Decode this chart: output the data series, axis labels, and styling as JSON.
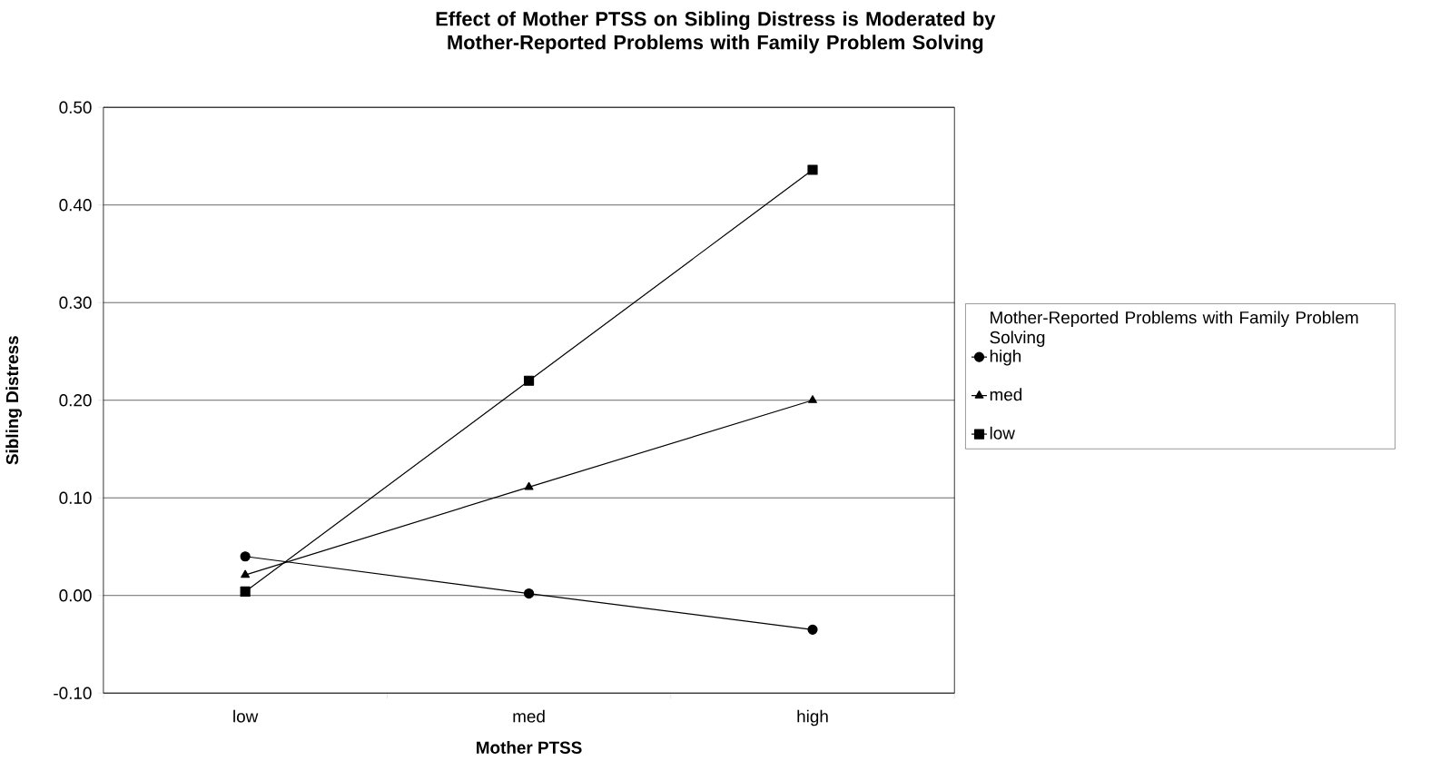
{
  "chart_data": {
    "type": "line",
    "title": "Effect of Mother PTSS on Sibling Distress is Moderated by Mother-Reported Problems with Family Problem Solving",
    "xlabel": "Mother PTSS",
    "ylabel": "Sibling Distress",
    "legend_title": "Mother-Reported Problems with Family Problem Solving",
    "categories": [
      "low",
      "med",
      "high"
    ],
    "series": [
      {
        "name": "high",
        "color": "#000000",
        "marker": "circle",
        "values": [
          0.04,
          0.002,
          -0.035
        ]
      },
      {
        "name": "med",
        "color": "#000000",
        "marker": "triangle",
        "values": [
          0.021,
          0.111,
          0.2
        ]
      },
      {
        "name": "low",
        "color": "#000000",
        "marker": "square",
        "values": [
          0.004,
          0.22,
          0.436
        ]
      }
    ],
    "ylim": [
      -0.1,
      0.5
    ],
    "yticks": [
      {
        "value": -0.1,
        "label": "-0.10"
      },
      {
        "value": 0.0,
        "label": "0.00"
      },
      {
        "value": 0.1,
        "label": "0.10"
      },
      {
        "value": 0.2,
        "label": "0.20"
      },
      {
        "value": 0.3,
        "label": "0.30"
      },
      {
        "value": 0.4,
        "label": "0.40"
      },
      {
        "value": 0.5,
        "label": "0.50"
      }
    ],
    "grid": "y",
    "legend": "right"
  }
}
